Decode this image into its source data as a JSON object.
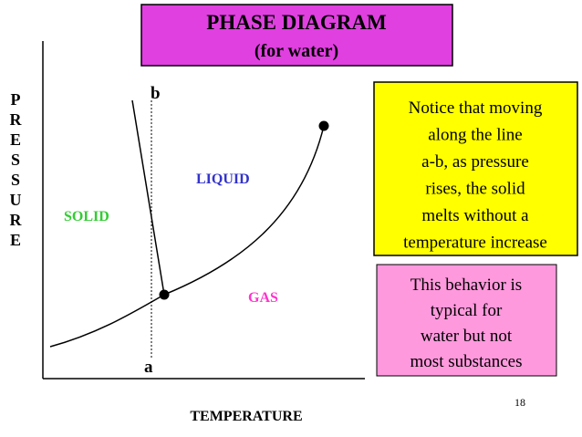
{
  "header": {
    "title": "PHASE DIAGRAM",
    "subtitle": "(for water)"
  },
  "diagram": {
    "y_label": "PRESSURE",
    "x_label": "TEMPERATURE",
    "regions": {
      "solid": "SOLID",
      "liquid": "LIQUID",
      "gas": "GAS"
    },
    "points": {
      "top": "b",
      "bottom": "a"
    }
  },
  "notes": [
    {
      "lines": [
        "Notice that moving",
        "along the line",
        "a-b, as pressure",
        "rises, the solid",
        "melts without a",
        "temperature increase"
      ]
    },
    {
      "lines": [
        "This behavior is",
        "typical for",
        "water but not",
        "most substances"
      ]
    }
  ],
  "page_number": "18"
}
